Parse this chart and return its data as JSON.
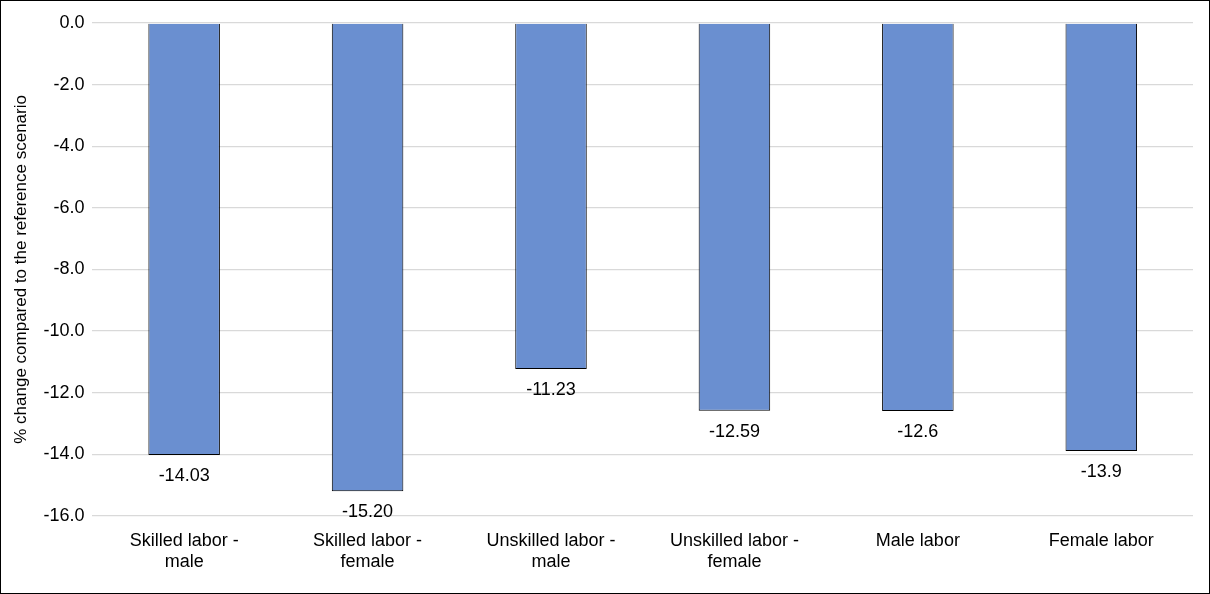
{
  "chart_data": {
    "type": "bar",
    "ylabel": "% change compared to the reference scenario",
    "categories": [
      "Skilled labor - male",
      "Skilled labor - female",
      "Unskilled labor - male",
      "Unskilled labor - female",
      "Male labor",
      "Female labor"
    ],
    "values": [
      -14.03,
      -15.2,
      -11.23,
      -12.59,
      -12.6,
      -13.9
    ],
    "value_labels": [
      "-14.03",
      "-15.20",
      "-11.23",
      "-12.59",
      "-12.6",
      "-13.9"
    ],
    "color": "#6a8fd0",
    "ylim": [
      -16,
      0
    ],
    "yticks": [
      {
        "value": 0,
        "label": "0.0"
      },
      {
        "value": -2,
        "label": "-2.0"
      },
      {
        "value": -4,
        "label": "-4.0"
      },
      {
        "value": -6,
        "label": "-6.0"
      },
      {
        "value": -8,
        "label": "-8.0"
      },
      {
        "value": -10,
        "label": "-10.0"
      },
      {
        "value": -12,
        "label": "-12.0"
      },
      {
        "value": -14,
        "label": "-14.0"
      },
      {
        "value": -16,
        "label": "-16.0"
      }
    ],
    "grid": "y",
    "legend": false
  }
}
